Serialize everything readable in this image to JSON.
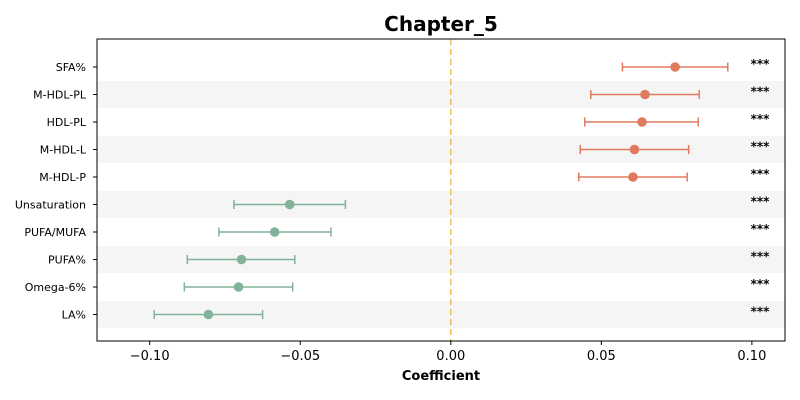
{
  "chart_data": {
    "type": "scatter",
    "title": "Chapter_5",
    "xlabel": "Coefficient",
    "ylabel": "",
    "xlim": [
      -0.1175,
      0.111
    ],
    "xticks": [
      -0.1,
      -0.05,
      0.0,
      0.05,
      0.1
    ],
    "xtick_labels": [
      "−0.10",
      "−0.05",
      "0.00",
      "0.05",
      "0.10"
    ],
    "reference_line_x": 0.0,
    "grid": false,
    "stripes": true,
    "colors": {
      "positive": "#E07A5F",
      "negative": "#81B29A",
      "reference": "#F2B84B",
      "stripe": "#F5F5F5"
    },
    "series": [
      {
        "label": "SFA%",
        "estimate": 0.0745,
        "ci_low": 0.057,
        "ci_high": 0.092,
        "significance": "***"
      },
      {
        "label": "M-HDL-PL",
        "estimate": 0.0645,
        "ci_low": 0.0465,
        "ci_high": 0.0825,
        "significance": "***"
      },
      {
        "label": "HDL-PL",
        "estimate": 0.0635,
        "ci_low": 0.0445,
        "ci_high": 0.0822,
        "significance": "***"
      },
      {
        "label": "M-HDL-L",
        "estimate": 0.061,
        "ci_low": 0.043,
        "ci_high": 0.079,
        "significance": "***"
      },
      {
        "label": "M-HDL-P",
        "estimate": 0.0605,
        "ci_low": 0.0425,
        "ci_high": 0.0785,
        "significance": "***"
      },
      {
        "label": "Unsaturation",
        "estimate": -0.0535,
        "ci_low": -0.072,
        "ci_high": -0.035,
        "significance": "***"
      },
      {
        "label": "PUFA/MUFA",
        "estimate": -0.0585,
        "ci_low": -0.077,
        "ci_high": -0.0398,
        "significance": "***"
      },
      {
        "label": "PUFA%",
        "estimate": -0.0695,
        "ci_low": -0.0875,
        "ci_high": -0.0518,
        "significance": "***"
      },
      {
        "label": "Omega-6%",
        "estimate": -0.0705,
        "ci_low": -0.0885,
        "ci_high": -0.0525,
        "significance": "***"
      },
      {
        "label": "LA%",
        "estimate": -0.0805,
        "ci_low": -0.0985,
        "ci_high": -0.0625,
        "significance": "***"
      }
    ]
  }
}
